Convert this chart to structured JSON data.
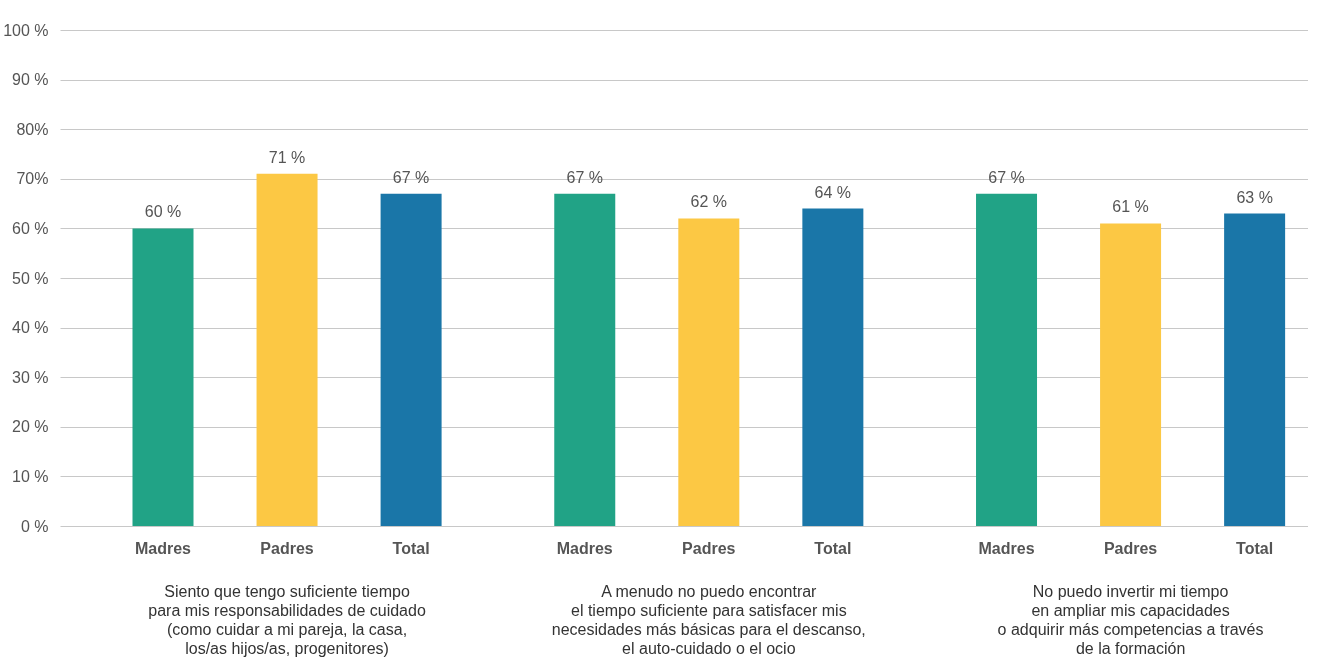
{
  "chart_data": {
    "type": "bar",
    "categories": [
      "Madres",
      "Padres",
      "Total",
      "Madres",
      "Padres",
      "Total",
      "Madres",
      "Padres",
      "Total"
    ],
    "values": [
      60,
      71,
      67,
      67,
      62,
      64,
      67,
      61,
      63
    ],
    "colors": [
      "#21a386",
      "#fcc844",
      "#1a76a8",
      "#21a386",
      "#fcc844",
      "#1a76a8",
      "#21a386",
      "#fcc844",
      "#1a76a8"
    ],
    "value_labels": [
      "60 %",
      "71 %",
      "67 %",
      "67 %",
      "62 %",
      "64 %",
      "67 %",
      "61 %",
      "63 %"
    ],
    "ylim": [
      0,
      100
    ],
    "yticks": [
      {
        "value": 0,
        "label": "0 %"
      },
      {
        "value": 10,
        "label": "10 %"
      },
      {
        "value": 20,
        "label": "20 %"
      },
      {
        "value": 30,
        "label": "30 %"
      },
      {
        "value": 40,
        "label": "40 %"
      },
      {
        "value": 50,
        "label": "50 %"
      },
      {
        "value": 60,
        "label": "60 %"
      },
      {
        "value": 70,
        "label": "70%"
      },
      {
        "value": 80,
        "label": "80%"
      },
      {
        "value": 90,
        "label": "90 %"
      },
      {
        "value": 100,
        "label": "100 %"
      }
    ],
    "grid": "y",
    "annotations": [
      "Siento que tengo suficiente tiempo\npara mis responsabilidades de cuidado\n(como cuidar a mi pareja, la casa,\nlos/as hijos/as, progenitores)",
      "A menudo no puedo encontrar\nel tiempo suficiente para satisfacer mis\nnecesidades más básicas para el descanso,\nel auto-cuidado o el ocio",
      "No puedo invertir mi tiempo\nen ampliar mis capacidades\no adquirir más competencias a través\nde la formación"
    ]
  }
}
